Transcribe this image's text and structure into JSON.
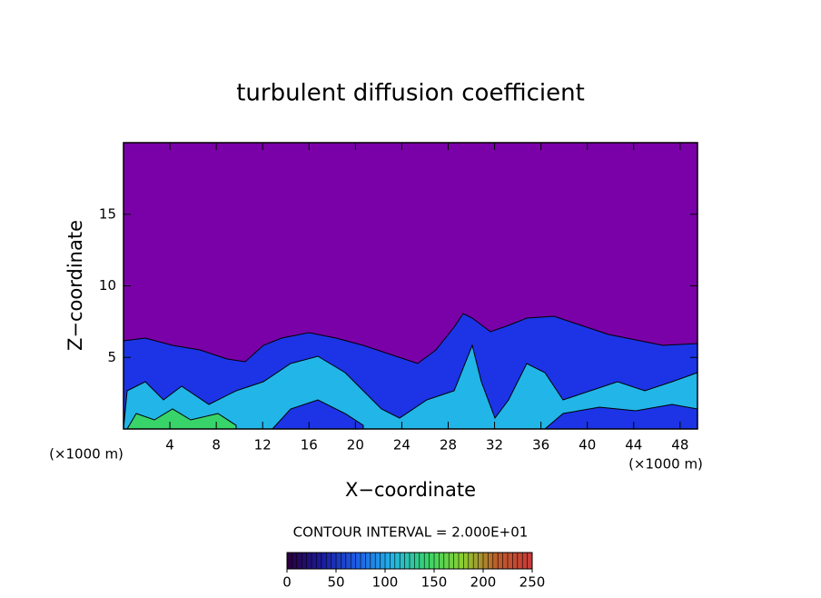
{
  "chart_data": {
    "type": "contour",
    "title": "turbulent diffusion coefficient",
    "xlabel": "X−coordinate",
    "ylabel": "Z−coordinate",
    "unit_label": "(×1000 m)",
    "xlim": [
      0,
      49.5
    ],
    "xticks": [
      4,
      8,
      12,
      16,
      20,
      24,
      28,
      32,
      36,
      40,
      44,
      48
    ],
    "ylim": [
      0,
      20
    ],
    "yticks": [
      5,
      10,
      15
    ],
    "background_color": "#7a00a8",
    "contour_note": "CONTOUR INTERVAL = 2.000E+01",
    "colorbar": {
      "lim": [
        0,
        250
      ],
      "ticks": [
        0,
        50,
        100,
        150,
        200,
        250
      ],
      "colors": [
        "#2a003a",
        "#1a1aa0",
        "#1e5ee6",
        "#22b5e8",
        "#38d46a",
        "#8ad030",
        "#c05a2a",
        "#c83a3a"
      ]
    }
  }
}
